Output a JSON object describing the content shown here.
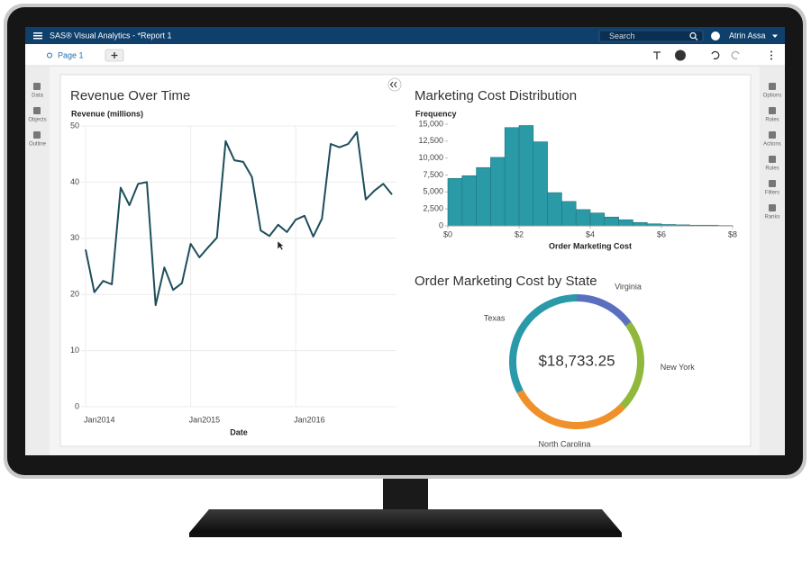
{
  "app": {
    "title": "SAS® Visual Analytics - *Report 1",
    "search_placeholder": "Search",
    "user": "Atrin Assa",
    "page_tab": "Page 1",
    "left_panels": [
      "Data",
      "Objects",
      "Outline"
    ],
    "right_panels": [
      "Options",
      "Roles",
      "Actions",
      "Rules",
      "Filters",
      "Ranks"
    ]
  },
  "chart_data": [
    {
      "type": "line",
      "title": "Revenue Over Time",
      "y_label": "Revenue (millions)",
      "x_label": "Date",
      "color": "#1d4e5a",
      "grid": true,
      "x": [
        "2014-01",
        "2014-02",
        "2014-03",
        "2014-04",
        "2014-05",
        "2014-06",
        "2014-07",
        "2014-08",
        "2014-09",
        "2014-10",
        "2014-11",
        "2014-12",
        "2015-01",
        "2015-02",
        "2015-03",
        "2015-04",
        "2015-05",
        "2015-06",
        "2015-07",
        "2015-08",
        "2015-09",
        "2015-10",
        "2015-11",
        "2015-12",
        "2016-01",
        "2016-02",
        "2016-03",
        "2016-04",
        "2016-05",
        "2016-06",
        "2016-07",
        "2016-08",
        "2016-09",
        "2016-10",
        "2016-11",
        "2016-12"
      ],
      "values": [
        28,
        20.4,
        22.4,
        21.8,
        39,
        35.9,
        39.7,
        40,
        18.1,
        24.8,
        20.8,
        22,
        29,
        26.6,
        28.4,
        30.1,
        47.3,
        43.9,
        43.6,
        40.9,
        31.4,
        30.4,
        32.4,
        31.1,
        33.3,
        34,
        30.3,
        33.5,
        46.8,
        46.2,
        46.8,
        48.9,
        36.9,
        38.5,
        39.7,
        37.8
      ],
      "xticks": [
        {
          "value": "2014-01",
          "label": "Jan2014"
        },
        {
          "value": "2015-01",
          "label": "Jan2015"
        },
        {
          "value": "2016-01",
          "label": "Jan2016"
        }
      ],
      "ylim": [
        0,
        50
      ],
      "yticks": [
        0,
        10,
        20,
        30,
        40,
        50
      ]
    },
    {
      "type": "histogram",
      "title": "Marketing Cost Distribution",
      "y_label": "Frequency",
      "x_label": "Order Marketing Cost",
      "color": "#2a9aa6",
      "bins": [
        0,
        0.4,
        0.8,
        1.2,
        1.6,
        2,
        2.4,
        2.8,
        3.2,
        3.6,
        4,
        4.4,
        4.8,
        5.2,
        5.6,
        6,
        6.4,
        6.8,
        7.2,
        7.6,
        8
      ],
      "values": [
        7000,
        7400,
        8600,
        10100,
        14500,
        14800,
        12400,
        4900,
        3600,
        2400,
        1900,
        1300,
        900,
        500,
        300,
        200,
        150,
        100,
        100,
        50
      ],
      "xlim": [
        0,
        8
      ],
      "xticks": [
        {
          "value": 0,
          "label": "$0"
        },
        {
          "value": 2,
          "label": "$2"
        },
        {
          "value": 4,
          "label": "$4"
        },
        {
          "value": 6,
          "label": "$6"
        },
        {
          "value": 8,
          "label": "$8"
        }
      ],
      "ylim": [
        0,
        15000
      ],
      "yticks": [
        0,
        {
          "value": 2500,
          "label": "2,500"
        },
        {
          "value": 5000,
          "label": "5,000"
        },
        {
          "value": 7500,
          "label": "7,500"
        },
        {
          "value": 10000,
          "label": "10,000"
        },
        {
          "value": 12500,
          "label": "12,500"
        },
        {
          "value": 15000,
          "label": "15,000"
        }
      ]
    },
    {
      "type": "donut",
      "title": "Order Marketing Cost by State",
      "total_label": "$18,733.25",
      "categories": [
        "Virginia",
        "New York",
        "North Carolina",
        "Texas"
      ],
      "values": [
        2800,
        4200,
        5600,
        6133.25
      ],
      "colors": [
        "#5b6fc0",
        "#90b83b",
        "#f0902a",
        "#2a9aa8"
      ]
    }
  ]
}
